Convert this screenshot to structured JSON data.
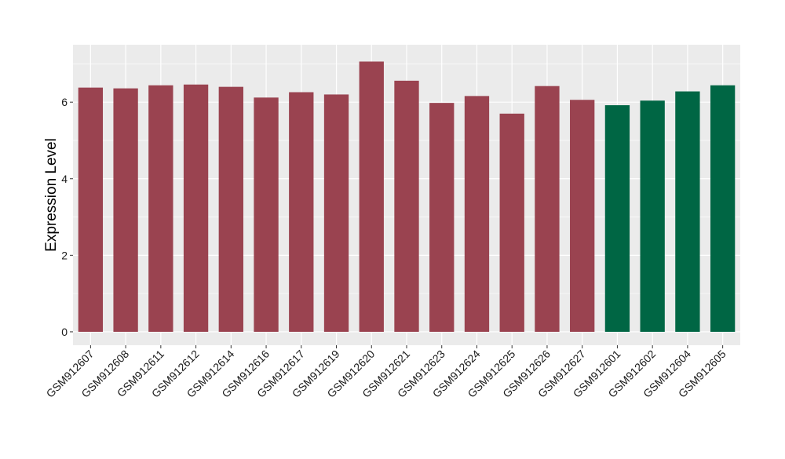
{
  "chart_data": {
    "type": "bar",
    "title": "",
    "xlabel": "",
    "ylabel": "Expression Level",
    "ylim": [
      0,
      7.5
    ],
    "yticks": [
      0,
      2,
      4,
      6
    ],
    "grid": true,
    "legend": "none",
    "categories": [
      "GSM912607",
      "GSM912608",
      "GSM912611",
      "GSM912612",
      "GSM912614",
      "GSM912616",
      "GSM912617",
      "GSM912619",
      "GSM912620",
      "GSM912621",
      "GSM912623",
      "GSM912624",
      "GSM912625",
      "GSM912626",
      "GSM912627",
      "GSM912601",
      "GSM912602",
      "GSM912604",
      "GSM912605"
    ],
    "values": [
      6.38,
      6.36,
      6.44,
      6.46,
      6.4,
      6.12,
      6.26,
      6.2,
      7.06,
      6.56,
      5.98,
      6.16,
      5.7,
      6.42,
      6.06,
      5.92,
      6.04,
      6.28,
      6.44
    ],
    "bar_colors": [
      "#9a4350",
      "#9a4350",
      "#9a4350",
      "#9a4350",
      "#9a4350",
      "#9a4350",
      "#9a4350",
      "#9a4350",
      "#9a4350",
      "#9a4350",
      "#9a4350",
      "#9a4350",
      "#9a4350",
      "#9a4350",
      "#9a4350",
      "#006644",
      "#006644",
      "#006644",
      "#006644"
    ],
    "panel_background": "#ebebeb",
    "grid_color": "#ffffff"
  }
}
